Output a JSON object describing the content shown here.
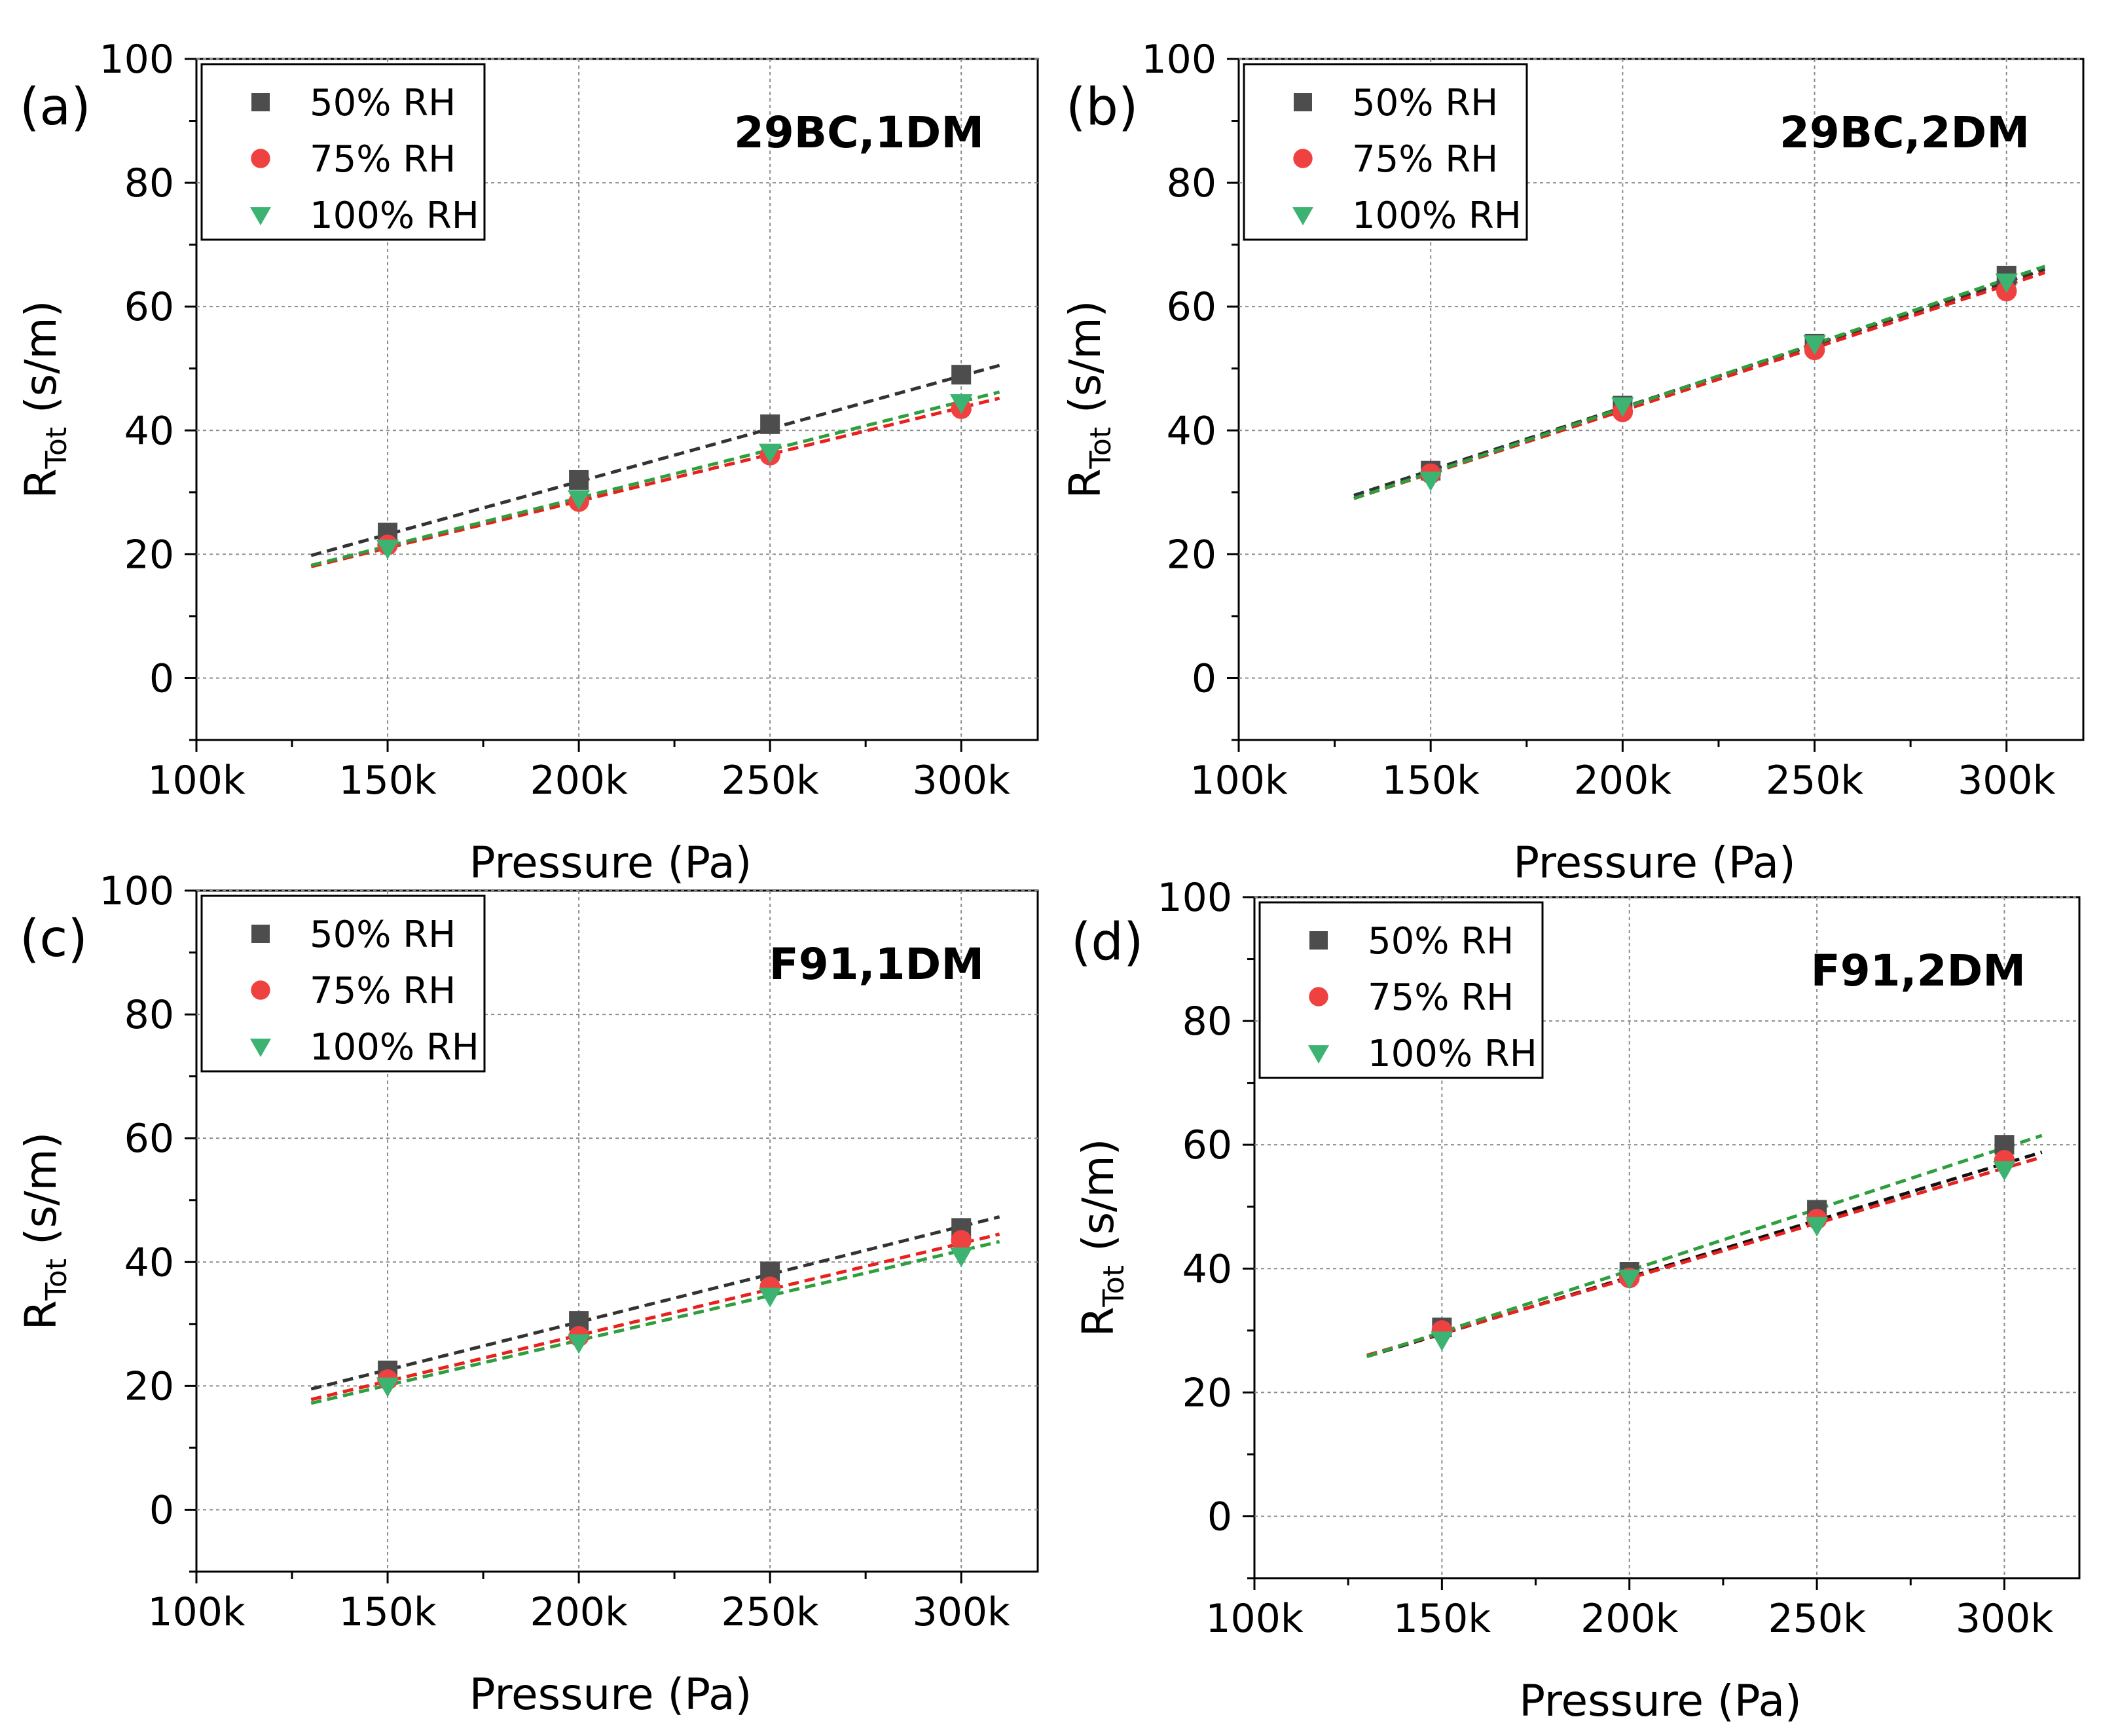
{
  "chart_data": [
    {
      "type": "scatter",
      "panel_label": "(a)",
      "title": "29BC,1DM",
      "xlabel": "Pressure (Pa)",
      "ylabel_main": "R",
      "ylabel_sub": "Tot",
      "ylabel_unit": " (s/m)",
      "xlim": [
        100000,
        320000
      ],
      "ylim": [
        -10,
        100
      ],
      "xticks": [
        100000,
        150000,
        200000,
        250000,
        300000
      ],
      "xtick_labels": [
        "100k",
        "150k",
        "200k",
        "250k",
        "300k"
      ],
      "yticks": [
        0,
        20,
        40,
        60,
        80,
        100
      ],
      "ytick_labels": [
        "0",
        "20",
        "40",
        "60",
        "80",
        "100"
      ],
      "grid": true,
      "legend_position": "top-left",
      "series": [
        {
          "name": "50% RH",
          "marker": "square",
          "color": "#4d4d4d",
          "line_color": "#333333",
          "x": [
            150000,
            200000,
            250000,
            300000
          ],
          "y": [
            23.5,
            32,
            41,
            49
          ],
          "fit": {
            "x": [
              130000,
              310000
            ],
            "y": [
              19.8,
              50.5
            ]
          }
        },
        {
          "name": "75% RH",
          "marker": "circle",
          "color": "#f04141",
          "line_color": "#e8201e",
          "x": [
            150000,
            200000,
            250000,
            300000
          ],
          "y": [
            21.5,
            28.5,
            36,
            43.5
          ],
          "fit": {
            "x": [
              130000,
              310000
            ],
            "y": [
              18,
              45.2
            ]
          }
        },
        {
          "name": "100% RH",
          "marker": "triangle-down",
          "color": "#3cb371",
          "line_color": "#2e9e3e",
          "x": [
            150000,
            200000,
            250000,
            300000
          ],
          "y": [
            21,
            29,
            36.5,
            44.5
          ],
          "fit": {
            "x": [
              130000,
              310000
            ],
            "y": [
              18.2,
              46.2
            ]
          }
        }
      ]
    },
    {
      "type": "scatter",
      "panel_label": "(b)",
      "title": "29BC,2DM",
      "xlabel": "Pressure (Pa)",
      "ylabel_main": "R",
      "ylabel_sub": "Tot",
      "ylabel_unit": " (s/m)",
      "xlim": [
        100000,
        320000
      ],
      "ylim": [
        -10,
        100
      ],
      "xticks": [
        100000,
        150000,
        200000,
        250000,
        300000
      ],
      "xtick_labels": [
        "100k",
        "150k",
        "200k",
        "250k",
        "300k"
      ],
      "yticks": [
        0,
        20,
        40,
        60,
        80,
        100
      ],
      "ytick_labels": [
        "0",
        "20",
        "40",
        "60",
        "80",
        "100"
      ],
      "grid": true,
      "legend_position": "top-left",
      "series": [
        {
          "name": "50% RH",
          "marker": "square",
          "color": "#4d4d4d",
          "line_color": "#333333",
          "x": [
            150000,
            200000,
            250000,
            300000
          ],
          "y": [
            33.5,
            44,
            54,
            65
          ],
          "fit": {
            "x": [
              130000,
              310000
            ],
            "y": [
              29.5,
              66
            ]
          }
        },
        {
          "name": "75% RH",
          "marker": "circle",
          "color": "#f04141",
          "line_color": "#e8201e",
          "x": [
            150000,
            200000,
            250000,
            300000
          ],
          "y": [
            33,
            43,
            53,
            62.5
          ],
          "fit": {
            "x": [
              130000,
              310000
            ],
            "y": [
              29,
              65.5
            ]
          }
        },
        {
          "name": "100% RH",
          "marker": "triangle-down",
          "color": "#3cb371",
          "line_color": "#2e9e3e",
          "x": [
            150000,
            200000,
            250000,
            300000
          ],
          "y": [
            32,
            44,
            54,
            64
          ],
          "fit": {
            "x": [
              130000,
              310000
            ],
            "y": [
              29,
              66.5
            ]
          }
        }
      ]
    },
    {
      "type": "scatter",
      "panel_label": "(c)",
      "title": "F91,1DM",
      "xlabel": "Pressure (Pa)",
      "ylabel_main": "R",
      "ylabel_sub": "Tot",
      "ylabel_unit": " (s/m)",
      "xlim": [
        100000,
        320000
      ],
      "ylim": [
        -10,
        100
      ],
      "xticks": [
        100000,
        150000,
        200000,
        250000,
        300000
      ],
      "xtick_labels": [
        "100k",
        "150k",
        "200k",
        "250k",
        "300k"
      ],
      "yticks": [
        0,
        20,
        40,
        60,
        80,
        100
      ],
      "ytick_labels": [
        "0",
        "20",
        "40",
        "60",
        "80",
        "100"
      ],
      "grid": true,
      "legend_position": "top-left",
      "series": [
        {
          "name": "50% RH",
          "marker": "square",
          "color": "#4d4d4d",
          "line_color": "#333333",
          "x": [
            150000,
            200000,
            250000,
            300000
          ],
          "y": [
            22.5,
            30.5,
            38.5,
            45.5
          ],
          "fit": {
            "x": [
              130000,
              310000
            ],
            "y": [
              19.5,
              47.3
            ]
          }
        },
        {
          "name": "75% RH",
          "marker": "circle",
          "color": "#f04141",
          "line_color": "#e8201e",
          "x": [
            150000,
            200000,
            250000,
            300000
          ],
          "y": [
            21,
            28,
            36,
            43.5
          ],
          "fit": {
            "x": [
              130000,
              310000
            ],
            "y": [
              17.8,
              44.5
            ]
          }
        },
        {
          "name": "100% RH",
          "marker": "triangle-down",
          "color": "#3cb371",
          "line_color": "#2e9e3e",
          "x": [
            150000,
            200000,
            250000,
            300000
          ],
          "y": [
            20,
            27,
            34.5,
            41
          ],
          "fit": {
            "x": [
              130000,
              310000
            ],
            "y": [
              17.2,
              43.3
            ]
          }
        }
      ]
    },
    {
      "type": "scatter",
      "panel_label": "(d)",
      "title": "F91,2DM",
      "xlabel": "Pressure (Pa)",
      "ylabel_main": "R",
      "ylabel_sub": "Tot",
      "ylabel_unit": " (s/m)",
      "xlim": [
        100000,
        320000
      ],
      "ylim": [
        -10,
        100
      ],
      "xticks": [
        100000,
        150000,
        200000,
        250000,
        300000
      ],
      "xtick_labels": [
        "100k",
        "150k",
        "200k",
        "250k",
        "300k"
      ],
      "yticks": [
        0,
        20,
        40,
        60,
        80,
        100
      ],
      "ytick_labels": [
        "0",
        "20",
        "40",
        "60",
        "80",
        "100"
      ],
      "grid": true,
      "legend_position": "top-left",
      "series": [
        {
          "name": "50% RH",
          "marker": "square",
          "color": "#4d4d4d",
          "line_color": "#111111",
          "x": [
            150000,
            200000,
            250000,
            300000
          ],
          "y": [
            30.5,
            39.5,
            49.5,
            60
          ],
          "fit": {
            "x": [
              130000,
              310000
            ],
            "y": [
              25.8,
              58.8
            ]
          }
        },
        {
          "name": "75% RH",
          "marker": "circle",
          "color": "#f04141",
          "line_color": "#e8201e",
          "x": [
            150000,
            200000,
            250000,
            300000
          ],
          "y": [
            30,
            38.5,
            48,
            57.5
          ],
          "fit": {
            "x": [
              130000,
              310000
            ],
            "y": [
              26,
              58
            ]
          }
        },
        {
          "name": "100% RH",
          "marker": "triangle-down",
          "color": "#3cb371",
          "line_color": "#2e9e3e",
          "x": [
            150000,
            200000,
            250000,
            300000
          ],
          "y": [
            28.5,
            38.5,
            47,
            56
          ],
          "fit": {
            "x": [
              130000,
              310000
            ],
            "y": [
              25.8,
              61.5
            ]
          }
        }
      ]
    }
  ]
}
